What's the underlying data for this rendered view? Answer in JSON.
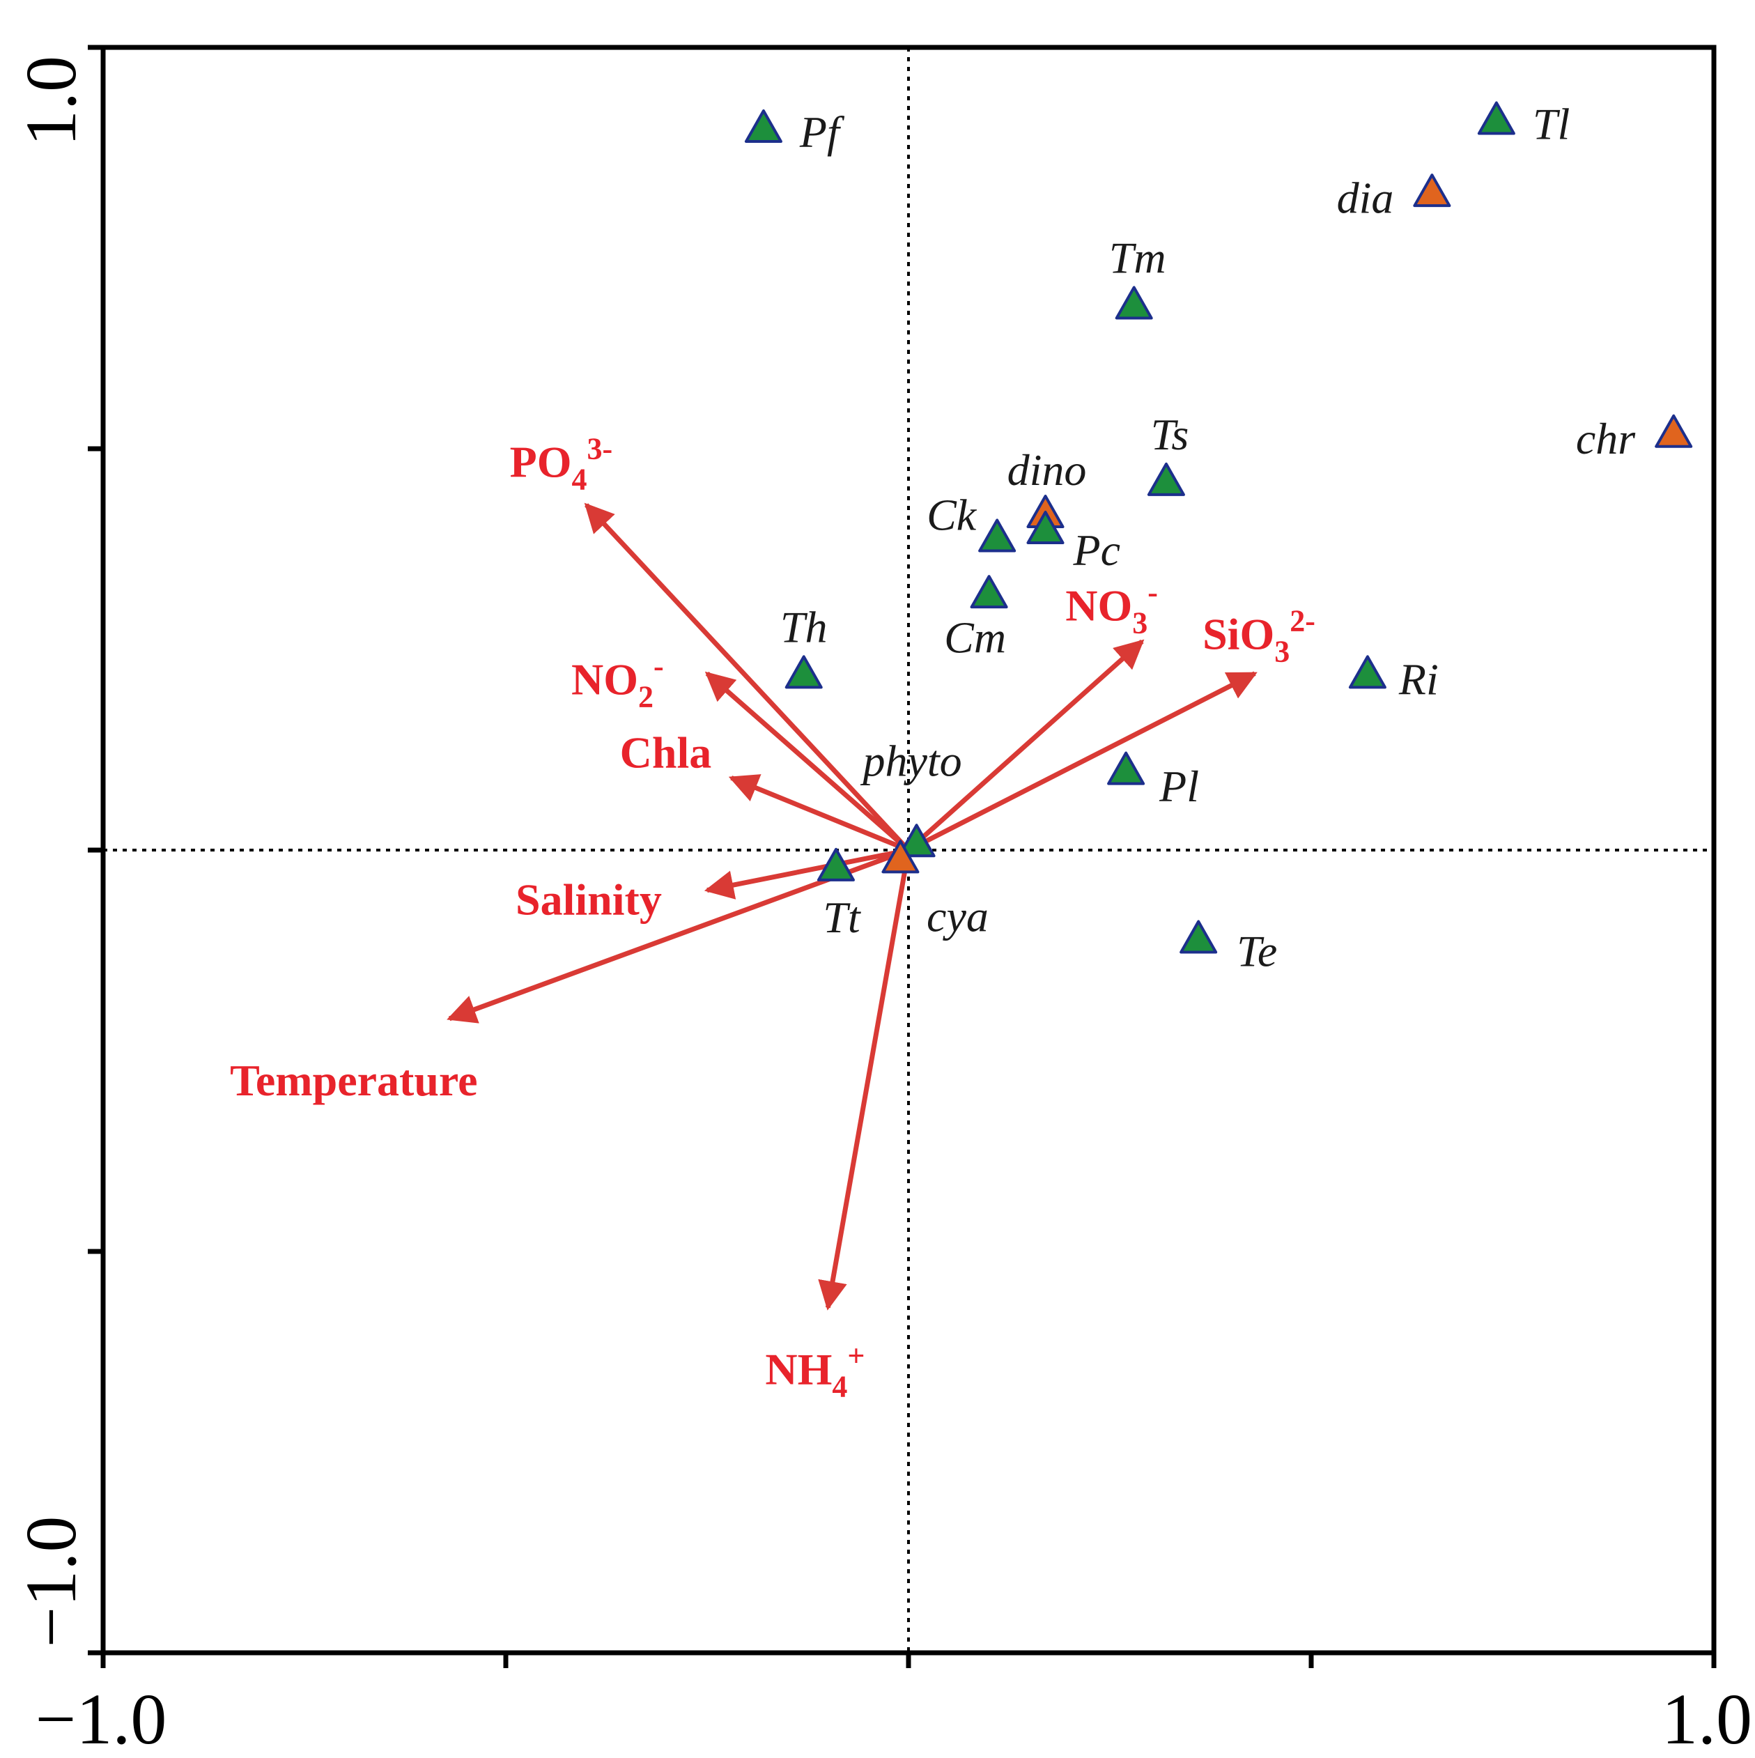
{
  "chart_data": {
    "type": "scatter",
    "subtype": "rda-biplot",
    "xlim": [
      -1.0,
      1.0
    ],
    "ylim": [
      -1.0,
      1.0
    ],
    "x_tick_labels": [
      {
        "value": -1.0,
        "label": "−1.0"
      },
      {
        "value": 1.0,
        "label": "1.0"
      }
    ],
    "y_tick_labels": [
      {
        "value": 1.0,
        "label": "1.0"
      },
      {
        "value": -1.0,
        "label": "−1.0"
      }
    ],
    "x_ticks": [
      -1.0,
      -0.5,
      0.0,
      0.5,
      1.0
    ],
    "y_ticks": [
      -1.0,
      -0.5,
      0.0,
      0.5,
      1.0
    ],
    "colors": {
      "env": "#e8232b",
      "arrow": "#d93a35",
      "species_fill": "#1d8f3c",
      "group_fill": "#e0641e",
      "marker_stroke": "#1c2f8c"
    },
    "env_vectors": [
      {
        "name": "PO4 3-",
        "base": "PO",
        "sub": "4",
        "sup": "3-",
        "x": -0.4,
        "y": 0.43
      },
      {
        "name": "NO2 -",
        "base": "NO",
        "sub": "2",
        "sup": "-",
        "x": -0.25,
        "y": 0.22
      },
      {
        "name": "Chla",
        "base": "Chla",
        "sub": "",
        "sup": "",
        "x": -0.22,
        "y": 0.09
      },
      {
        "name": "Salinity",
        "base": "Salinity",
        "sub": "",
        "sup": "",
        "x": -0.25,
        "y": -0.05
      },
      {
        "name": "Temperature",
        "base": "Temperature",
        "sub": "",
        "sup": "",
        "x": -0.57,
        "y": -0.21
      },
      {
        "name": "NH4 +",
        "base": "NH",
        "sub": "4",
        "sup": "+",
        "x": -0.1,
        "y": -0.57
      },
      {
        "name": "NO3 -",
        "base": "NO",
        "sub": "3",
        "sup": "-",
        "x": 0.29,
        "y": 0.26
      },
      {
        "name": "SiO3 2-",
        "base": "SiO",
        "sub": "3",
        "sup": "2-",
        "x": 0.43,
        "y": 0.22
      }
    ],
    "species": [
      {
        "label": "Pf",
        "x": -0.18,
        "y": 0.9,
        "group": "species"
      },
      {
        "label": "Tl",
        "x": 0.73,
        "y": 0.91,
        "group": "species"
      },
      {
        "label": "dia",
        "x": 0.65,
        "y": 0.82,
        "group": "group"
      },
      {
        "label": "Tm",
        "x": 0.28,
        "y": 0.68,
        "group": "species"
      },
      {
        "label": "chr",
        "x": 0.95,
        "y": 0.52,
        "group": "group"
      },
      {
        "label": "Ts",
        "x": 0.32,
        "y": 0.46,
        "group": "species"
      },
      {
        "label": "dino",
        "x": 0.17,
        "y": 0.42,
        "group": "group"
      },
      {
        "label": "Ck",
        "x": 0.11,
        "y": 0.39,
        "group": "species"
      },
      {
        "label": "Pc",
        "x": 0.17,
        "y": 0.4,
        "group": "species"
      },
      {
        "label": "Cm",
        "x": 0.1,
        "y": 0.32,
        "group": "species"
      },
      {
        "label": "Th",
        "x": -0.13,
        "y": 0.22,
        "group": "species"
      },
      {
        "label": "Ri",
        "x": 0.57,
        "y": 0.22,
        "group": "species"
      },
      {
        "label": "Pl",
        "x": 0.27,
        "y": 0.1,
        "group": "species"
      },
      {
        "label": "phyto",
        "x": 0.01,
        "y": 0.01,
        "group": "species"
      },
      {
        "label": "Tt",
        "x": -0.09,
        "y": -0.02,
        "group": "species"
      },
      {
        "label": "cya",
        "x": -0.01,
        "y": -0.01,
        "group": "group"
      },
      {
        "label": "Te",
        "x": 0.36,
        "y": -0.11,
        "group": "species"
      }
    ]
  }
}
